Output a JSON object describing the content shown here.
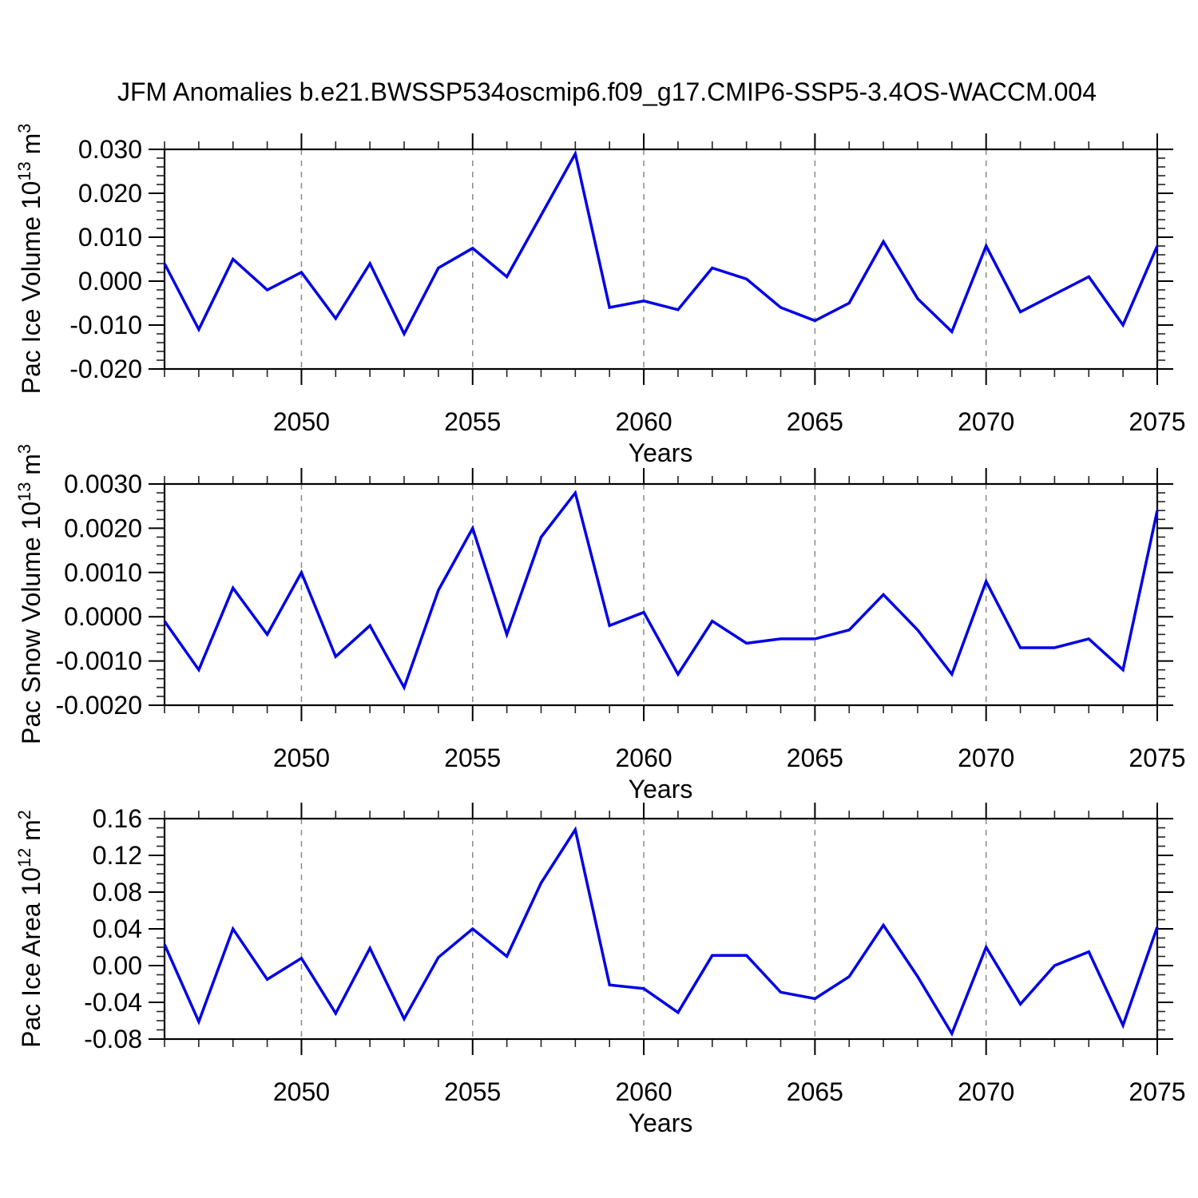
{
  "title": "JFM Anomalies b.e21.BWSSP534oscmip6.f09_g17.CMIP6-SSP5-3.4OS-WACCM.004",
  "colors": {
    "line": "#0000e6",
    "frame": "#000000",
    "major_tick": "#000000",
    "minor_tick": "#222222",
    "grid": "#8a8a8a",
    "text": "#000000",
    "background": "#ffffff"
  },
  "chart_data": [
    {
      "type": "line",
      "id": "pac-ice-volume",
      "series_name": "Pac Ice Volume anomaly",
      "y_label": "Pac Ice Volume 10^13 m^3",
      "y_label_parts": {
        "pre": "Pac Ice Volume 10",
        "sup1": "13",
        "mid": " m",
        "sup2": "3"
      },
      "x_label": "Years",
      "xlim": [
        2046,
        2075
      ],
      "ylim": [
        -0.02,
        0.03
      ],
      "ytick_values": [
        0.03,
        0.02,
        0.01,
        0.0,
        -0.01,
        -0.02
      ],
      "ytick_labels": [
        "0.030",
        "0.020",
        "0.010",
        "0.000",
        "-0.010",
        "-0.020"
      ],
      "y_minor_step": 0.002,
      "x_major_ticks": [
        2050,
        2055,
        2060,
        2065,
        2070,
        2075
      ],
      "x_tick_labels": [
        "2050",
        "2055",
        "2060",
        "2065",
        "2070",
        "2075"
      ],
      "x_minor_step": 1,
      "grid_vertical_dashed": [
        2050,
        2055,
        2060,
        2065,
        2070
      ],
      "legend": "none",
      "x": [
        2046,
        2047,
        2048,
        2049,
        2050,
        2051,
        2052,
        2053,
        2054,
        2055,
        2056,
        2057,
        2058,
        2059,
        2060,
        2061,
        2062,
        2063,
        2064,
        2065,
        2066,
        2067,
        2068,
        2069,
        2070,
        2071,
        2072,
        2073,
        2074,
        2075
      ],
      "values": [
        0.004,
        -0.011,
        0.005,
        -0.002,
        0.002,
        -0.0085,
        0.004,
        -0.012,
        0.003,
        0.0075,
        0.001,
        0.015,
        0.029,
        -0.006,
        -0.0045,
        -0.0065,
        0.003,
        0.0005,
        -0.006,
        -0.009,
        -0.005,
        0.009,
        -0.004,
        -0.0115,
        0.008,
        -0.007,
        -0.003,
        0.001,
        -0.01,
        0.008
      ]
    },
    {
      "type": "line",
      "id": "pac-snow-volume",
      "series_name": "Pac Snow Volume anomaly",
      "y_label": "Pac Snow Volume 10^13 m^3",
      "y_label_parts": {
        "pre": "Pac Snow Volume 10",
        "sup1": "13",
        "mid": " m",
        "sup2": "3"
      },
      "x_label": "Years",
      "xlim": [
        2046,
        2075
      ],
      "ylim": [
        -0.002,
        0.003
      ],
      "ytick_values": [
        0.003,
        0.002,
        0.001,
        0.0,
        -0.001,
        -0.002
      ],
      "ytick_labels": [
        "0.0030",
        "0.0020",
        "0.0010",
        "0.0000",
        "-0.0010",
        "-0.0020"
      ],
      "y_minor_step": 0.0002,
      "x_major_ticks": [
        2050,
        2055,
        2060,
        2065,
        2070,
        2075
      ],
      "x_tick_labels": [
        "2050",
        "2055",
        "2060",
        "2065",
        "2070",
        "2075"
      ],
      "x_minor_step": 1,
      "grid_vertical_dashed": [
        2050,
        2055,
        2060,
        2065,
        2070
      ],
      "legend": "none",
      "x": [
        2046,
        2047,
        2048,
        2049,
        2050,
        2051,
        2052,
        2053,
        2054,
        2055,
        2056,
        2057,
        2058,
        2059,
        2060,
        2061,
        2062,
        2063,
        2064,
        2065,
        2066,
        2067,
        2068,
        2069,
        2070,
        2071,
        2072,
        2073,
        2074,
        2075
      ],
      "values": [
        -0.0001,
        -0.0012,
        0.00065,
        -0.0004,
        0.001,
        -0.0009,
        -0.0002,
        -0.0016,
        0.0006,
        0.002,
        -0.0004,
        0.0018,
        0.0028,
        -0.0002,
        0.0001,
        -0.0013,
        -0.0001,
        -0.0006,
        -0.0005,
        -0.0005,
        -0.0003,
        0.0005,
        -0.0003,
        -0.0013,
        0.0008,
        -0.0007,
        -0.0007,
        -0.0005,
        -0.0012,
        0.0024
      ]
    },
    {
      "type": "line",
      "id": "pac-ice-area",
      "series_name": "Pac Ice Area anomaly",
      "y_label": "Pac Ice Area 10^12 m^2",
      "y_label_parts": {
        "pre": "Pac Ice Area 10",
        "sup1": "12",
        "mid": " m",
        "sup2": "2"
      },
      "x_label": "Years",
      "xlim": [
        2046,
        2075
      ],
      "ylim": [
        -0.08,
        0.16
      ],
      "ytick_values": [
        0.16,
        0.12,
        0.08,
        0.04,
        0.0,
        -0.04,
        -0.08
      ],
      "ytick_labels": [
        "0.16",
        "0.12",
        "0.08",
        "0.04",
        "0.00",
        "-0.04",
        "-0.08"
      ],
      "y_minor_step": 0.01,
      "x_major_ticks": [
        2050,
        2055,
        2060,
        2065,
        2070,
        2075
      ],
      "x_tick_labels": [
        "2050",
        "2055",
        "2060",
        "2065",
        "2070",
        "2075"
      ],
      "x_minor_step": 1,
      "grid_vertical_dashed": [
        2050,
        2055,
        2060,
        2065,
        2070
      ],
      "legend": "none",
      "x": [
        2046,
        2047,
        2048,
        2049,
        2050,
        2051,
        2052,
        2053,
        2054,
        2055,
        2056,
        2057,
        2058,
        2059,
        2060,
        2061,
        2062,
        2063,
        2064,
        2065,
        2066,
        2067,
        2068,
        2069,
        2070,
        2071,
        2072,
        2073,
        2074,
        2075
      ],
      "values": [
        0.023,
        -0.061,
        0.04,
        -0.015,
        0.008,
        -0.052,
        0.019,
        -0.058,
        0.009,
        0.04,
        0.01,
        0.09,
        0.148,
        -0.021,
        -0.025,
        -0.051,
        0.011,
        0.011,
        -0.029,
        -0.036,
        -0.012,
        0.044,
        -0.012,
        -0.074,
        0.02,
        -0.042,
        0.0,
        0.015,
        -0.065,
        0.042
      ]
    }
  ]
}
